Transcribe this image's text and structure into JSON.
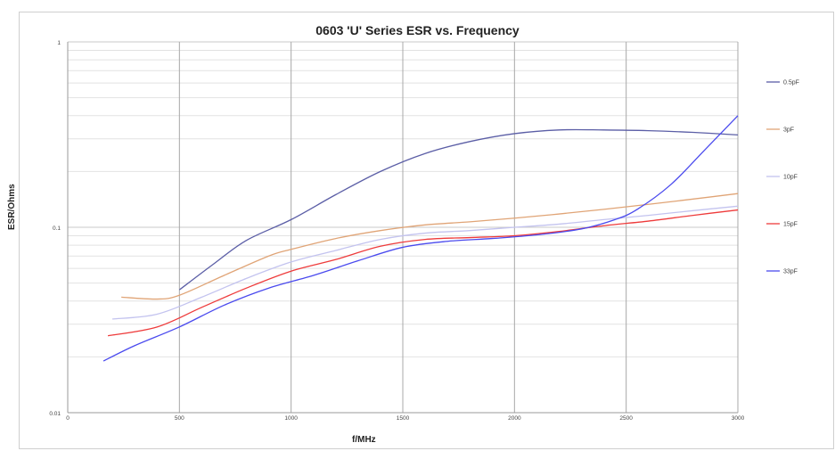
{
  "chart_data": {
    "type": "line",
    "title": "0603 'U' Series ESR vs. Frequency",
    "xlabel": "f/MHz",
    "ylabel": "ESR/Ohms",
    "xlim": [
      0,
      3000
    ],
    "ylim": [
      0.01,
      1
    ],
    "yscale": "log",
    "x_ticks": [
      "0",
      "500",
      "1000",
      "1500",
      "2000",
      "2500",
      "3000"
    ],
    "y_ticks": [
      "0.01",
      "0.1",
      "1"
    ],
    "grid": true,
    "legend_position": "right",
    "series": [
      {
        "name": "0.5pF",
        "color": "#5b5ea6",
        "points": [
          [
            500,
            0.046
          ],
          [
            650,
            0.063
          ],
          [
            800,
            0.085
          ],
          [
            1000,
            0.11
          ],
          [
            1200,
            0.15
          ],
          [
            1400,
            0.2
          ],
          [
            1600,
            0.25
          ],
          [
            1800,
            0.29
          ],
          [
            2000,
            0.32
          ],
          [
            2200,
            0.335
          ],
          [
            2400,
            0.335
          ],
          [
            2600,
            0.332
          ],
          [
            2800,
            0.325
          ],
          [
            3000,
            0.315
          ]
        ]
      },
      {
        "name": "3pF",
        "color": "#e0a476",
        "points": [
          [
            240,
            0.042
          ],
          [
            400,
            0.041
          ],
          [
            500,
            0.043
          ],
          [
            700,
            0.055
          ],
          [
            900,
            0.07
          ],
          [
            1000,
            0.076
          ],
          [
            1200,
            0.087
          ],
          [
            1400,
            0.096
          ],
          [
            1600,
            0.103
          ],
          [
            1800,
            0.107
          ],
          [
            2000,
            0.112
          ],
          [
            2200,
            0.118
          ],
          [
            2400,
            0.125
          ],
          [
            2600,
            0.133
          ],
          [
            2800,
            0.142
          ],
          [
            3000,
            0.152
          ]
        ]
      },
      {
        "name": "10pF",
        "color": "#c3c3ef",
        "points": [
          [
            200,
            0.032
          ],
          [
            400,
            0.034
          ],
          [
            600,
            0.042
          ],
          [
            800,
            0.053
          ],
          [
            1000,
            0.065
          ],
          [
            1200,
            0.075
          ],
          [
            1400,
            0.086
          ],
          [
            1600,
            0.093
          ],
          [
            1800,
            0.096
          ],
          [
            2000,
            0.1
          ],
          [
            2200,
            0.104
          ],
          [
            2400,
            0.11
          ],
          [
            2600,
            0.116
          ],
          [
            2800,
            0.123
          ],
          [
            3000,
            0.13
          ]
        ]
      },
      {
        "name": "15pF",
        "color": "#ee3b3b",
        "points": [
          [
            180,
            0.026
          ],
          [
            400,
            0.029
          ],
          [
            600,
            0.037
          ],
          [
            800,
            0.047
          ],
          [
            1000,
            0.058
          ],
          [
            1200,
            0.067
          ],
          [
            1400,
            0.079
          ],
          [
            1600,
            0.086
          ],
          [
            1800,
            0.088
          ],
          [
            2000,
            0.09
          ],
          [
            2200,
            0.095
          ],
          [
            2400,
            0.102
          ],
          [
            2600,
            0.108
          ],
          [
            2800,
            0.116
          ],
          [
            3000,
            0.124
          ]
        ]
      },
      {
        "name": "33pF",
        "color": "#4a4aee",
        "points": [
          [
            160,
            0.019
          ],
          [
            300,
            0.023
          ],
          [
            500,
            0.029
          ],
          [
            700,
            0.038
          ],
          [
            900,
            0.047
          ],
          [
            1100,
            0.055
          ],
          [
            1300,
            0.066
          ],
          [
            1500,
            0.078
          ],
          [
            1700,
            0.084
          ],
          [
            1900,
            0.087
          ],
          [
            2100,
            0.091
          ],
          [
            2300,
            0.098
          ],
          [
            2450,
            0.11
          ],
          [
            2550,
            0.125
          ],
          [
            2700,
            0.17
          ],
          [
            2850,
            0.26
          ],
          [
            3000,
            0.4
          ]
        ]
      }
    ]
  }
}
